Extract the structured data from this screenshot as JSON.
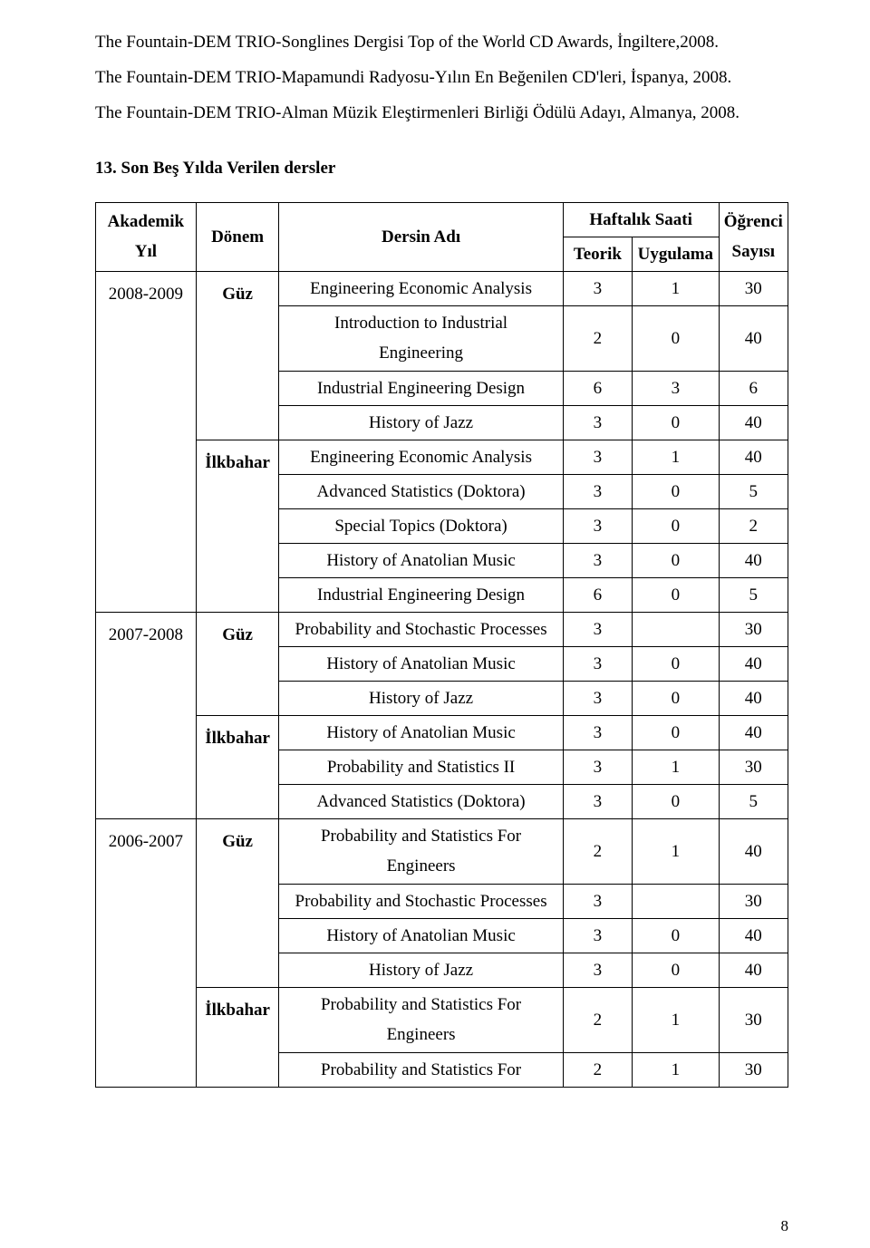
{
  "paragraphs": [
    "The Fountain-DEM TRIO-Songlines Dergisi Top of the World CD Awards, İngiltere,2008.",
    "The Fountain-DEM TRIO-Mapamundi Radyosu-Yılın En Beğenilen CD'leri, İspanya, 2008.",
    "The Fountain-DEM TRIO-Alman Müzik Eleştirmenleri Birliği Ödülü Adayı, Almanya, 2008."
  ],
  "section_title": "13. Son Beş Yılda Verilen dersler",
  "headers": {
    "year": "Akademik Yıl",
    "term": "Dönem",
    "course": "Dersin Adı",
    "weekly": "Haftalık Saati",
    "teorik": "Teorik",
    "uygulama": "Uygulama",
    "students": "Öğrenci Sayısı"
  },
  "col_widths": {
    "c1": "14.5%",
    "c2": "12%",
    "c3": "41%",
    "c4": "10%",
    "c5": "12.5%",
    "c6": "10%"
  },
  "years": [
    {
      "year": "2008-2009",
      "terms": [
        {
          "term": "Güz",
          "rows": [
            {
              "course": "Engineering Economic Analysis",
              "te": "3",
              "uy": "1",
              "st": "30",
              "stack": false
            },
            {
              "course": "Introduction to Industrial Engineering",
              "te": "2",
              "uy": "0",
              "st": "40",
              "stack": true
            },
            {
              "course": "Industrial Engineering Design",
              "te": "6",
              "uy": "3",
              "st": "6",
              "stack": false
            },
            {
              "course": "History of Jazz",
              "te": "3",
              "uy": "0",
              "st": "40",
              "stack": false
            }
          ]
        },
        {
          "term": "İlkbahar",
          "rows": [
            {
              "course": "Engineering Economic Analysis",
              "te": "3",
              "uy": "1",
              "st": "40",
              "stack": false
            },
            {
              "course": "Advanced Statistics (Doktora)",
              "te": "3",
              "uy": "0",
              "st": "5",
              "stack": false
            },
            {
              "course": "Special Topics (Doktora)",
              "te": "3",
              "uy": "0",
              "st": "2",
              "stack": false
            },
            {
              "course": "History of Anatolian Music",
              "te": "3",
              "uy": "0",
              "st": "40",
              "stack": false
            },
            {
              "course": "Industrial Engineering Design",
              "te": "6",
              "uy": "0",
              "st": "5",
              "stack": false
            }
          ]
        }
      ]
    },
    {
      "year": "2007-2008",
      "terms": [
        {
          "term": "Güz",
          "rows": [
            {
              "course": "Probability and Stochastic Processes",
              "te": "3",
              "uy": "",
              "st": "30",
              "stack": false
            },
            {
              "course": "History of Anatolian Music",
              "te": "3",
              "uy": "0",
              "st": "40",
              "stack": false
            },
            {
              "course": "History of Jazz",
              "te": "3",
              "uy": "0",
              "st": "40",
              "stack": false
            }
          ]
        },
        {
          "term": "İlkbahar",
          "rows": [
            {
              "course": "History of Anatolian Music",
              "te": "3",
              "uy": "0",
              "st": "40",
              "stack": false
            },
            {
              "course": "Probability and Statistics II",
              "te": "3",
              "uy": "1",
              "st": "30",
              "stack": false
            },
            {
              "course": "Advanced Statistics (Doktora)",
              "te": "3",
              "uy": "0",
              "st": "5",
              "stack": false
            }
          ]
        }
      ]
    },
    {
      "year": "2006-2007",
      "terms": [
        {
          "term": "Güz",
          "rows": [
            {
              "course": "Probability and Statistics For Engineers",
              "te": "2",
              "uy": "1",
              "st": "40",
              "stack": true
            },
            {
              "course": "Probability and Stochastic Processes",
              "te": "3",
              "uy": "",
              "st": "30",
              "stack": false
            },
            {
              "course": "History of Anatolian Music",
              "te": "3",
              "uy": "0",
              "st": "40",
              "stack": false
            },
            {
              "course": "History of Jazz",
              "te": "3",
              "uy": "0",
              "st": "40",
              "stack": false
            }
          ]
        },
        {
          "term": "İlkbahar",
          "rows": [
            {
              "course": "Probability and Statistics For Engineers",
              "te": "2",
              "uy": "1",
              "st": "30",
              "stack": true
            },
            {
              "course": "Probability and Statistics For",
              "te": "2",
              "uy": "1",
              "st": "30",
              "stack": false
            }
          ]
        }
      ]
    }
  ],
  "page_number": "8"
}
